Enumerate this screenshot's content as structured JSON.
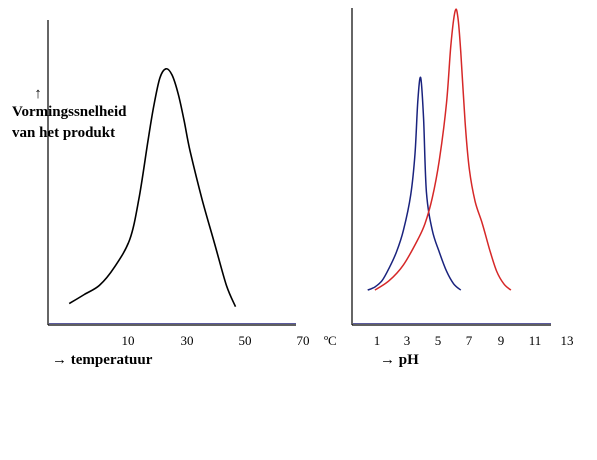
{
  "chart_data": [
    {
      "type": "line",
      "ylabel_line1": "Vormingssnelheid",
      "ylabel_line2": "van het produkt",
      "xlabel": "→ temperatuur",
      "unit": "ºC",
      "x_ticks": [
        "10",
        "30",
        "50",
        "70"
      ],
      "xlim": [
        -7,
        75
      ],
      "ylim": [
        0,
        1
      ],
      "series": [
        {
          "color": "#000000",
          "x": [
            0,
            5,
            10,
            15,
            20,
            23,
            26,
            28,
            30,
            32,
            34,
            36,
            38,
            40,
            44,
            48,
            52,
            55
          ],
          "y": [
            0.07,
            0.1,
            0.13,
            0.19,
            0.28,
            0.41,
            0.6,
            0.72,
            0.81,
            0.84,
            0.82,
            0.76,
            0.67,
            0.57,
            0.41,
            0.27,
            0.13,
            0.06
          ]
        }
      ]
    },
    {
      "type": "line",
      "xlabel": "→ pH",
      "x_ticks": [
        "1",
        "3",
        "5",
        "7",
        "9",
        "11",
        "13"
      ],
      "xlim": [
        -0.6,
        13.3
      ],
      "ylim": [
        0,
        1
      ],
      "series": [
        {
          "color": "#1a237e",
          "x": [
            0.5,
            1,
            1.5,
            2,
            2.5,
            3,
            3.5,
            3.8,
            4.0,
            4.2,
            4.4,
            4.6,
            5,
            5.5,
            6,
            6.5,
            7
          ],
          "y": [
            0.11,
            0.12,
            0.14,
            0.18,
            0.23,
            0.3,
            0.41,
            0.54,
            0.71,
            0.78,
            0.65,
            0.42,
            0.3,
            0.23,
            0.17,
            0.13,
            0.11
          ]
        },
        {
          "color": "#d62828",
          "x": [
            1,
            2,
            3,
            4,
            4.5,
            5,
            5.5,
            6,
            6.3,
            6.6,
            6.8,
            7,
            7.3,
            7.6,
            8,
            8.5,
            9,
            9.5,
            10,
            10.5
          ],
          "y": [
            0.11,
            0.14,
            0.19,
            0.27,
            0.32,
            0.4,
            0.52,
            0.7,
            0.88,
            0.99,
            0.97,
            0.86,
            0.64,
            0.49,
            0.39,
            0.32,
            0.24,
            0.17,
            0.13,
            0.11
          ]
        }
      ]
    }
  ]
}
